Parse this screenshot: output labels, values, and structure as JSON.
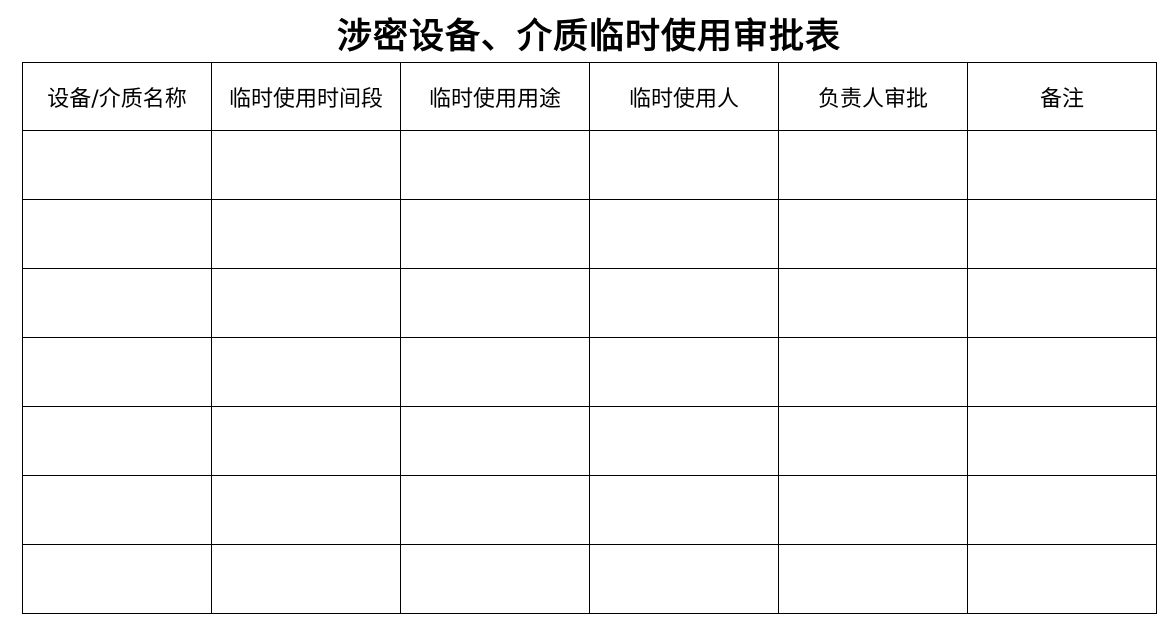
{
  "title": "涉密设备、介质临时使用审批表",
  "table": {
    "headers": [
      "设备/介质名称",
      "临时使用时间段",
      "临时使用用途",
      "临时使用人",
      "负责人审批",
      "备注"
    ],
    "rows": [
      [
        "",
        "",
        "",
        "",
        "",
        ""
      ],
      [
        "",
        "",
        "",
        "",
        "",
        ""
      ],
      [
        "",
        "",
        "",
        "",
        "",
        ""
      ],
      [
        "",
        "",
        "",
        "",
        "",
        ""
      ],
      [
        "",
        "",
        "",
        "",
        "",
        ""
      ],
      [
        "",
        "",
        "",
        "",
        "",
        ""
      ],
      [
        "",
        "",
        "",
        "",
        "",
        ""
      ]
    ]
  }
}
